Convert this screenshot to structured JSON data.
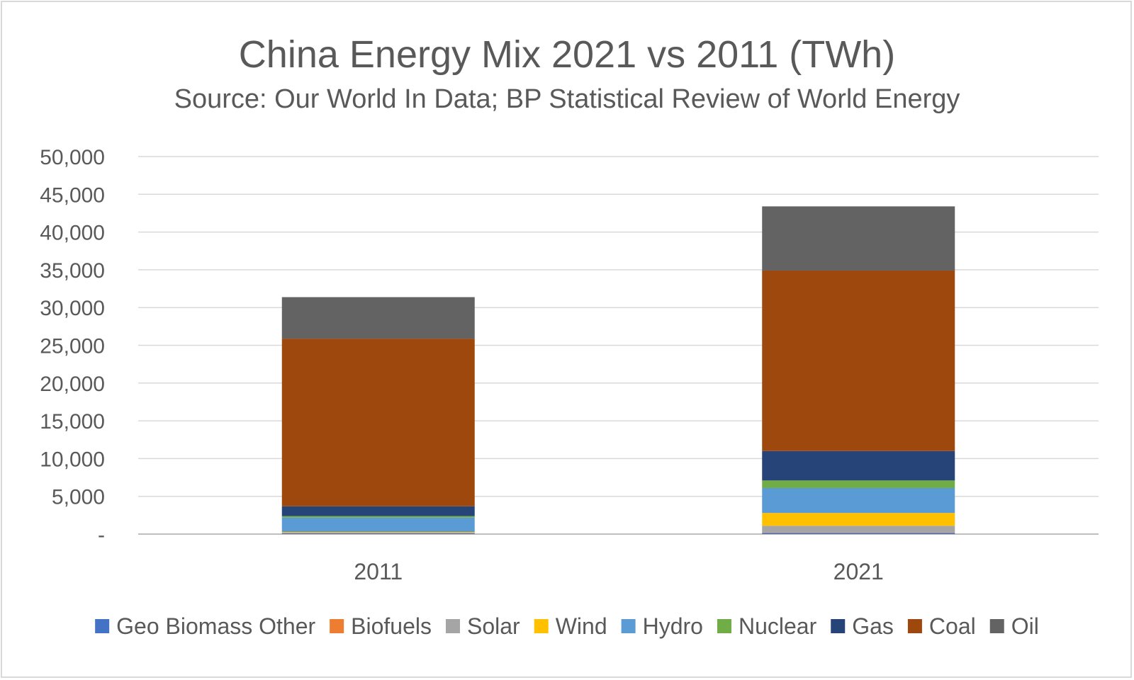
{
  "chart_data": {
    "type": "bar",
    "stacked": true,
    "title": "China Energy Mix 2021 vs 2011 (TWh)",
    "subtitle": "Source: Our World In Data; BP Statistical Review of World Energy",
    "xlabel": "",
    "ylabel": "",
    "categories": [
      "2011",
      "2021"
    ],
    "ylim": [
      0,
      50000
    ],
    "yticks": [
      0,
      5000,
      10000,
      15000,
      20000,
      25000,
      30000,
      35000,
      40000,
      45000,
      50000
    ],
    "ytick_labels": [
      "-",
      "5,000",
      "10,000",
      "15,000",
      "20,000",
      "25,000",
      "30,000",
      "35,000",
      "40,000",
      "45,000",
      "50,000"
    ],
    "grid": true,
    "legend_position": "bottom",
    "series": [
      {
        "name": "Geo Biomass Other",
        "color": "#4472c4",
        "values": [
          100,
          150
        ]
      },
      {
        "name": "Biofuels",
        "color": "#ed7d31",
        "values": [
          50,
          50
        ]
      },
      {
        "name": "Solar",
        "color": "#a5a5a5",
        "values": [
          30,
          900
        ]
      },
      {
        "name": "Wind",
        "color": "#ffc000",
        "values": [
          100,
          1700
        ]
      },
      {
        "name": "Hydro",
        "color": "#5b9bd5",
        "values": [
          1900,
          3300
        ]
      },
      {
        "name": "Nuclear",
        "color": "#70ad47",
        "values": [
          200,
          1000
        ]
      },
      {
        "name": "Gas",
        "color": "#264478",
        "values": [
          1300,
          3900
        ]
      },
      {
        "name": "Coal",
        "color": "#9e480e",
        "values": [
          22200,
          23900
        ]
      },
      {
        "name": "Oil",
        "color": "#636363",
        "values": [
          5500,
          8500
        ]
      }
    ]
  }
}
